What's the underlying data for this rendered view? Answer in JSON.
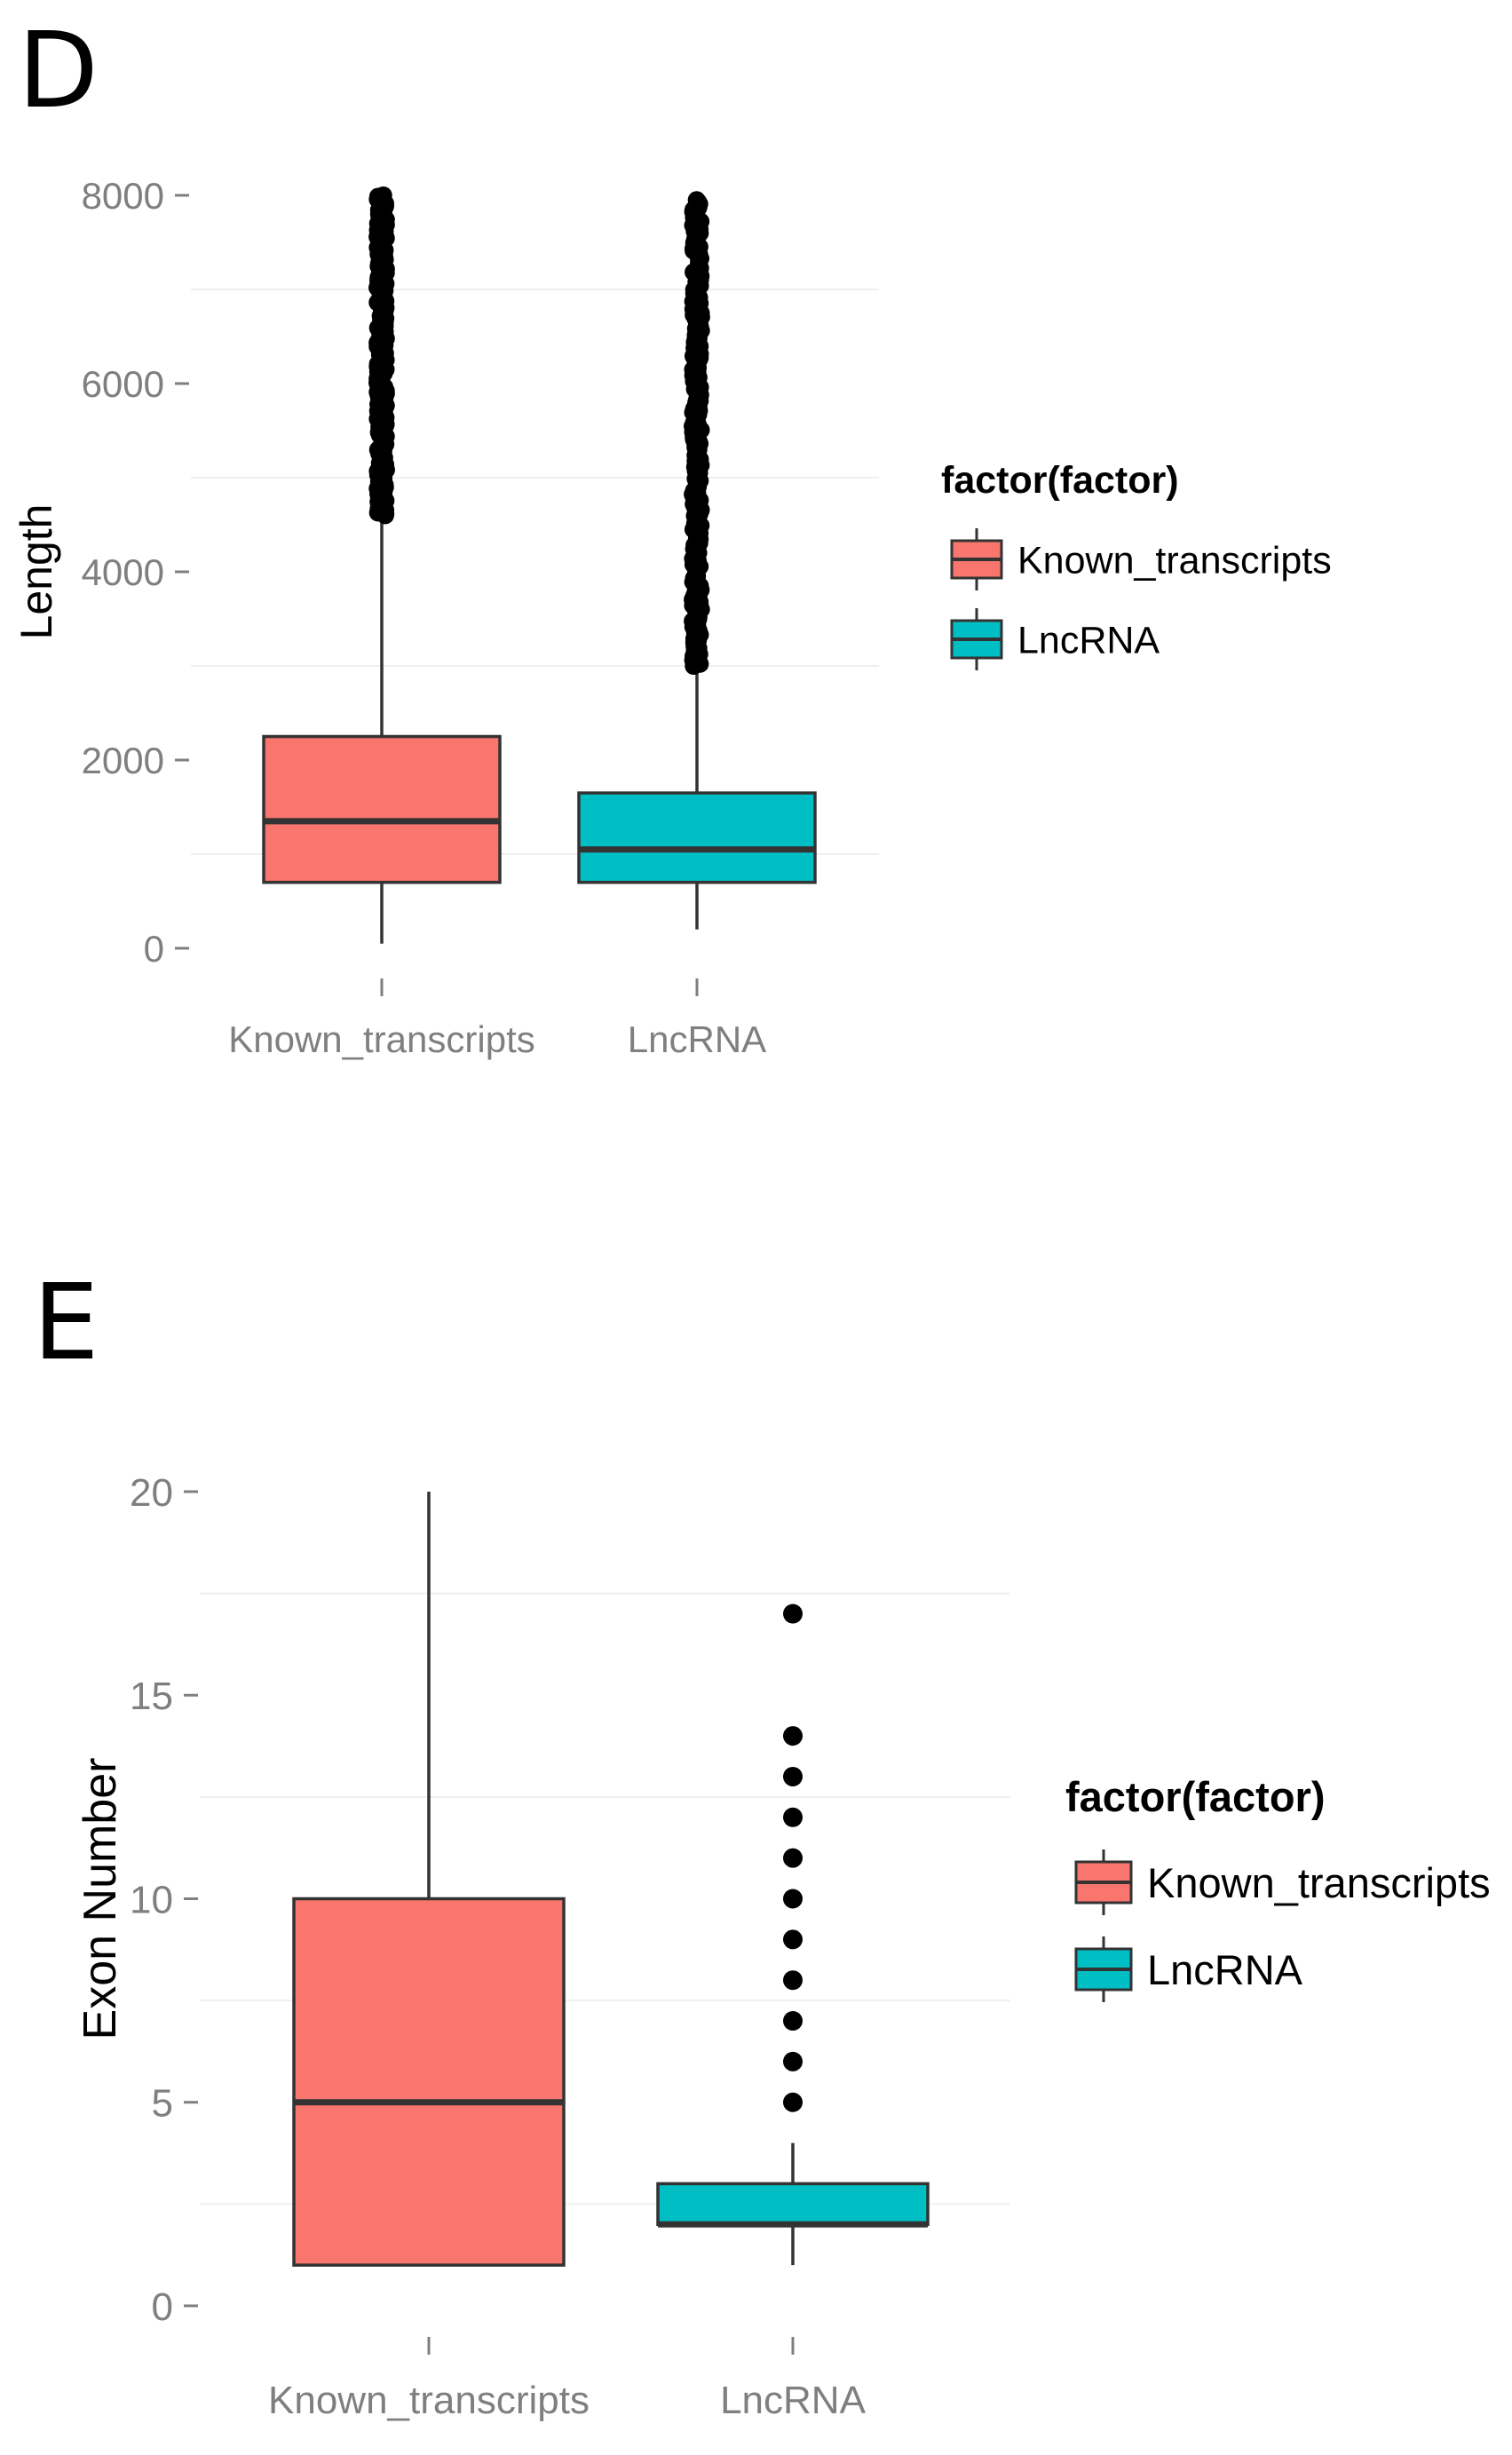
{
  "chart_data": [
    {
      "panel": "D",
      "type": "box",
      "title": "",
      "xlabel": "",
      "ylabel": "Length",
      "ylim": [
        0,
        8000
      ],
      "yticks": [
        0,
        2000,
        4000,
        6000,
        8000
      ],
      "grid": true,
      "legend": {
        "title": "factor(factor)",
        "placement": "right",
        "entries": [
          "Known_transcripts",
          "LncRNA"
        ]
      },
      "categories": [
        "Known_transcripts",
        "LncRNA"
      ],
      "series": [
        {
          "name": "Known_transcripts",
          "color": "#F8766D",
          "min": 50,
          "q1": 700,
          "median": 1350,
          "q3": 2250,
          "whisker_high": 4600,
          "outliers_range": [
            4600,
            8000
          ]
        },
        {
          "name": "LncRNA",
          "color": "#00BFC4",
          "min": 200,
          "q1": 700,
          "median": 1050,
          "q3": 1650,
          "whisker_high": 3000,
          "outliers_range": [
            3000,
            7950
          ]
        }
      ]
    },
    {
      "panel": "E",
      "type": "box",
      "title": "",
      "xlabel": "",
      "ylabel": "Exon Number",
      "ylim": [
        0,
        20
      ],
      "yticks": [
        0,
        5,
        10,
        15,
        20
      ],
      "grid": true,
      "legend": {
        "title": "factor(factor)",
        "placement": "right",
        "entries": [
          "Known_transcripts",
          "LncRNA"
        ]
      },
      "categories": [
        "Known_transcripts",
        "LncRNA"
      ],
      "series": [
        {
          "name": "Known_transcripts",
          "color": "#F8766D",
          "min": 1,
          "q1": 1,
          "median": 5,
          "q3": 10,
          "whisker_high": 20,
          "outliers": []
        },
        {
          "name": "LncRNA",
          "color": "#00BFC4",
          "min": 1,
          "q1": 2,
          "median": 2,
          "q3": 3,
          "whisker_high": 4,
          "outliers": [
            5,
            6,
            7,
            8,
            9,
            10,
            11,
            12,
            13,
            14,
            17
          ]
        }
      ]
    }
  ]
}
